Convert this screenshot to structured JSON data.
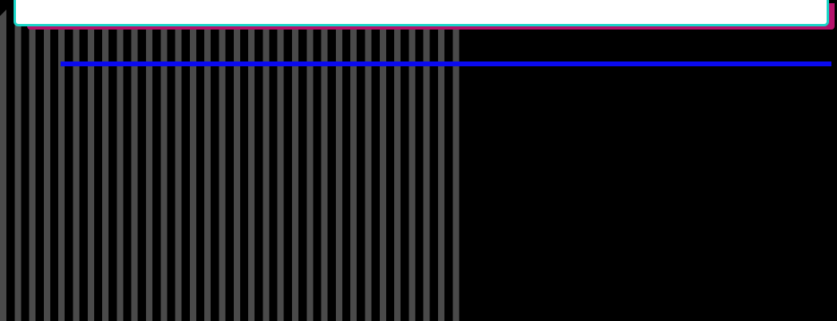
{
  "colors": {
    "background": "#000000",
    "stripe": "#4a4a4a",
    "panel_fill": "#ffffff",
    "panel_border": "#17d6c8",
    "panel_shadow": "#b5126b",
    "line": "#0a0af0"
  }
}
